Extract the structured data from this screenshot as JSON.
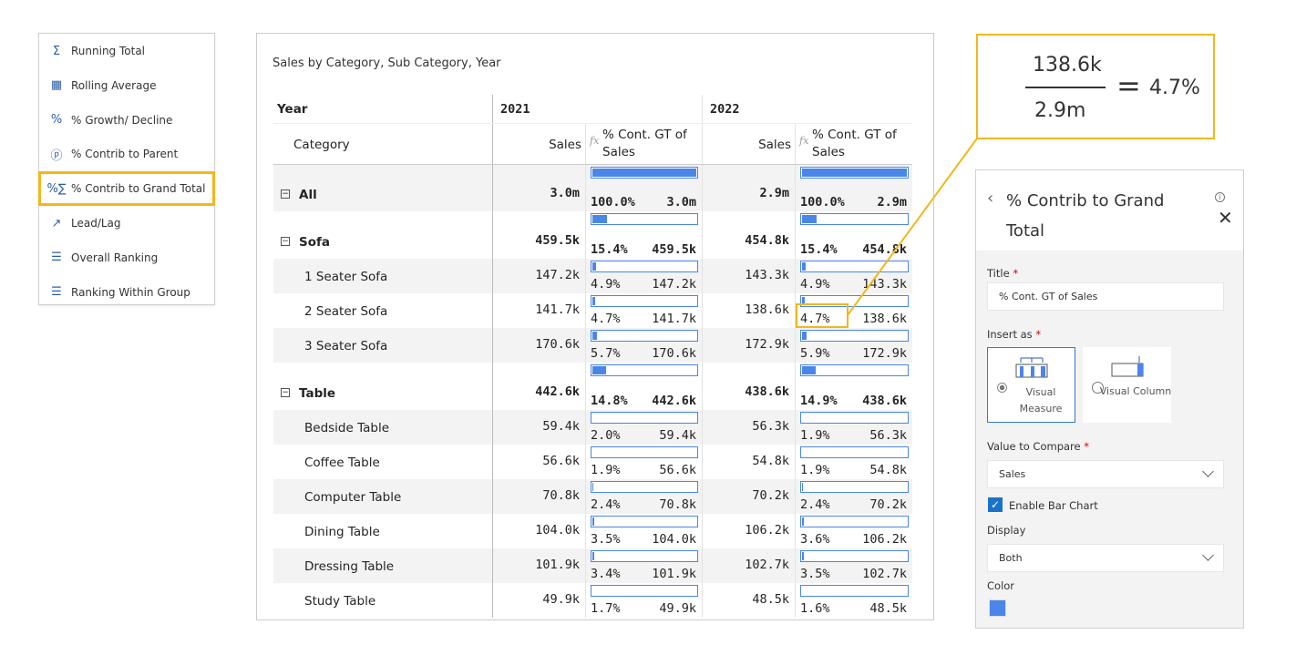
{
  "menu": {
    "items": [
      {
        "label": "Running Total",
        "icon": "running-total-icon"
      },
      {
        "label": "Rolling Average",
        "icon": "rolling-average-icon"
      },
      {
        "label": "% Growth/ Decline",
        "icon": "percent-icon"
      },
      {
        "label": "% Contrib to Parent",
        "icon": "percent-circle-icon"
      },
      {
        "label": "% Contrib to Grand Total",
        "icon": "percent-sigma-icon",
        "selected": true
      },
      {
        "label": "Lead/Lag",
        "icon": "trend-arrow-icon"
      },
      {
        "label": "Overall Ranking",
        "icon": "ranking-icon"
      },
      {
        "label": "Ranking Within Group",
        "icon": "ranking-group-icon"
      }
    ]
  },
  "visual": {
    "title": "Sales by Category, Sub Category, Year",
    "year_header": "Year",
    "category_header": "Category",
    "years": [
      "2021",
      "2022"
    ],
    "sales_header": "Sales",
    "fx_label": "fx",
    "measure_header": "% Cont. GT of Sales",
    "bar_color": "#4a86e8",
    "rows": [
      {
        "label": "All",
        "level": 0,
        "v": [
          [
            "3.0m",
            "100.0%",
            100
          ],
          [
            "2.9m",
            "100.0%",
            100
          ]
        ]
      },
      {
        "label": "Sofa",
        "level": 0,
        "v": [
          [
            "459.5k",
            "15.4%",
            15.4
          ],
          [
            "454.8k",
            "15.4%",
            15.4
          ]
        ]
      },
      {
        "label": "1 Seater Sofa",
        "level": 1,
        "v": [
          [
            "147.2k",
            "4.9%",
            4.9
          ],
          [
            "143.3k",
            "4.9%",
            4.9
          ]
        ]
      },
      {
        "label": "2 Seater Sofa",
        "level": 1,
        "v": [
          [
            "141.7k",
            "4.7%",
            4.7
          ],
          [
            "138.6k",
            "4.7%",
            4.7
          ]
        ]
      },
      {
        "label": "3 Seater Sofa",
        "level": 1,
        "v": [
          [
            "170.6k",
            "5.7%",
            5.7
          ],
          [
            "172.9k",
            "5.9%",
            5.9
          ]
        ]
      },
      {
        "label": "Table",
        "level": 0,
        "v": [
          [
            "442.6k",
            "14.8%",
            14.8
          ],
          [
            "438.6k",
            "14.9%",
            14.9
          ]
        ]
      },
      {
        "label": "Bedside Table",
        "level": 1,
        "v": [
          [
            "59.4k",
            "2.0%",
            2.0
          ],
          [
            "56.3k",
            "1.9%",
            1.9
          ]
        ]
      },
      {
        "label": "Coffee Table",
        "level": 1,
        "v": [
          [
            "56.6k",
            "1.9%",
            1.9
          ],
          [
            "54.8k",
            "1.9%",
            1.9
          ]
        ]
      },
      {
        "label": "Computer Table",
        "level": 1,
        "v": [
          [
            "70.8k",
            "2.4%",
            2.4
          ],
          [
            "70.2k",
            "2.4%",
            2.4
          ]
        ]
      },
      {
        "label": "Dining Table",
        "level": 1,
        "v": [
          [
            "104.0k",
            "3.5%",
            3.5
          ],
          [
            "106.2k",
            "3.6%",
            3.6
          ]
        ]
      },
      {
        "label": "Dressing Table",
        "level": 1,
        "v": [
          [
            "101.9k",
            "3.4%",
            3.4
          ],
          [
            "102.7k",
            "3.5%",
            3.5
          ]
        ]
      },
      {
        "label": "Study Table",
        "level": 1,
        "v": [
          [
            "49.9k",
            "1.7%",
            1.7
          ],
          [
            "48.5k",
            "1.6%",
            1.6
          ]
        ]
      }
    ]
  },
  "formula": {
    "numerator": "138.6k",
    "denominator": "2.9m",
    "equals": "=",
    "result": "4.7%"
  },
  "settings": {
    "title": "% Contrib to Grand Total",
    "title_label": "Title",
    "title_value": "% Cont. GT of Sales",
    "insert_label": "Insert as",
    "insert_options": [
      "Visual Measure",
      "Visual Column"
    ],
    "compare_label": "Value to Compare",
    "compare_value": "Sales",
    "bar_chart_label": "Enable Bar Chart",
    "bar_chart_enabled": true,
    "display_label": "Display",
    "display_value": "Both",
    "color_label": "Color",
    "color": "#4a86e8",
    "required": "*"
  }
}
